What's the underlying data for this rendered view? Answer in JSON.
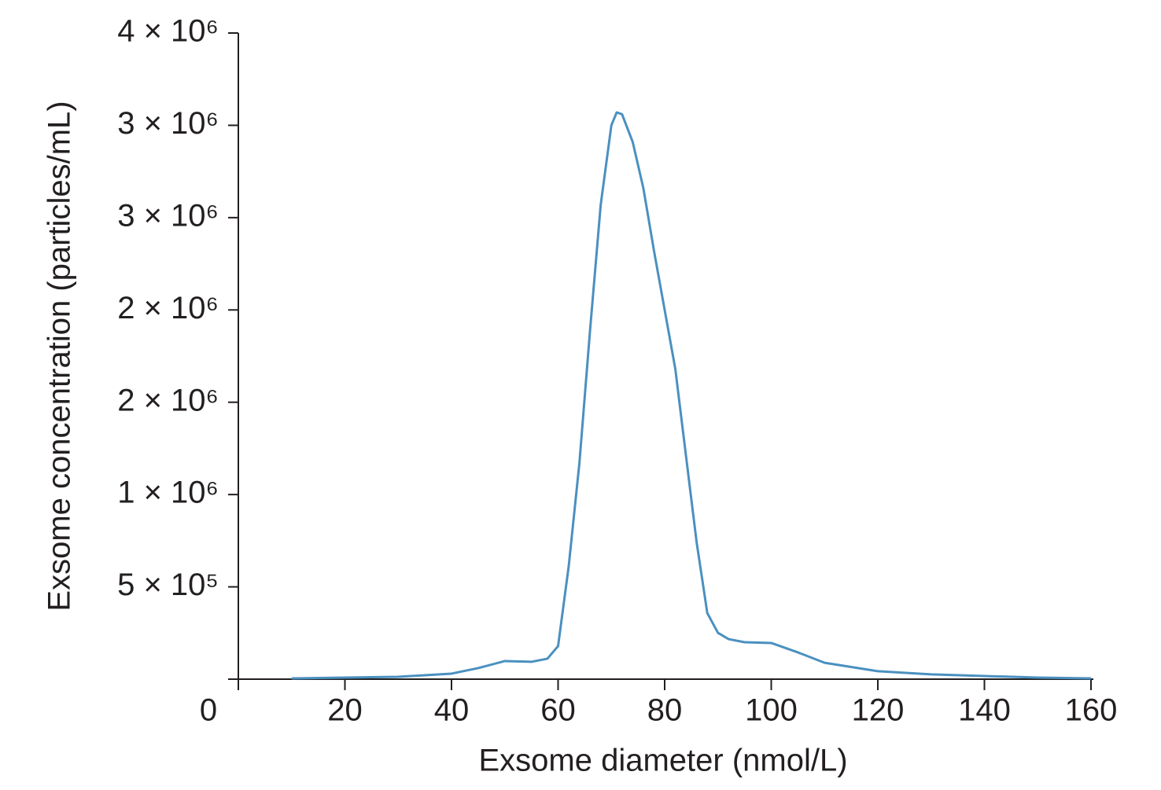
{
  "chart_data": {
    "type": "line",
    "xlabel": "Exsome diameter (nmol/L)",
    "ylabel": "Exsome concentration (particles/mL)",
    "x": [
      10,
      20,
      30,
      40,
      45,
      50,
      55,
      58,
      60,
      62,
      64,
      66,
      68,
      70,
      71,
      72,
      74,
      76,
      78,
      80,
      82,
      84,
      86,
      88,
      90,
      92,
      95,
      100,
      105,
      110,
      120,
      130,
      140,
      150,
      160
    ],
    "series": [
      {
        "name": "Exsome concentration",
        "color": "#4a90c0",
        "values": [
          4000,
          8500,
          13000,
          30000,
          60000,
          98000,
          94000,
          111000,
          179000,
          613000,
          1170000,
          1890000,
          2570000,
          3000000,
          3070000,
          3060000,
          2910000,
          2660000,
          2320000,
          2000000,
          1680000,
          1210000,
          741000,
          358000,
          251000,
          217000,
          200000,
          196000,
          145000,
          89000,
          43000,
          26000,
          17000,
          8500,
          4000
        ]
      }
    ],
    "xlim": [
      0,
      160
    ],
    "xticks": [
      0,
      20,
      40,
      60,
      80,
      100,
      120,
      140,
      160
    ],
    "ylim": [
      0,
      3500000
    ],
    "yticks": [
      {
        "value": 500000,
        "label": "5 × 10⁵"
      },
      {
        "value": 1000000,
        "label": "1 × 10⁶"
      },
      {
        "value": 1500000,
        "label": "2 × 10⁶"
      },
      {
        "value": 2000000,
        "label": "2 × 10⁶"
      },
      {
        "value": 2500000,
        "label": "3 × 10⁶"
      },
      {
        "value": 3000000,
        "label": "3 × 10⁶"
      },
      {
        "value": 3500000,
        "label": "4 × 10⁶"
      }
    ],
    "grid": false
  }
}
